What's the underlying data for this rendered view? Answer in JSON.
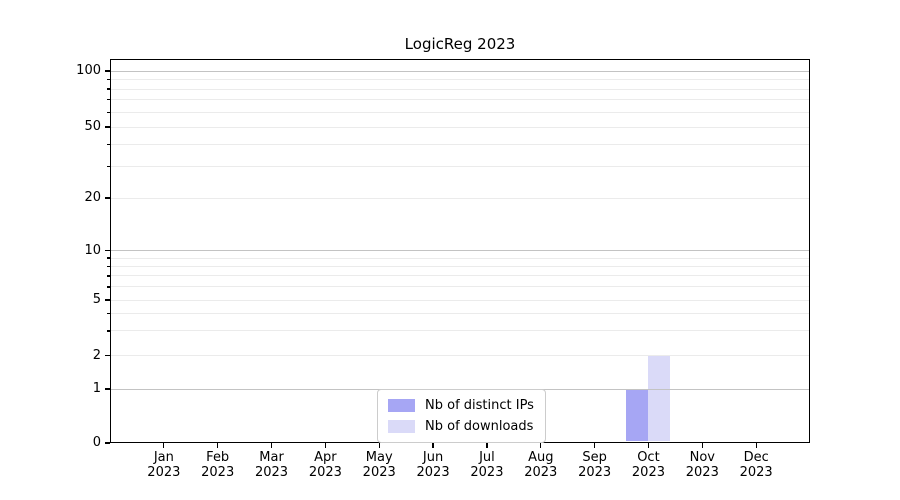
{
  "chart_data": {
    "type": "bar",
    "title": "LogicReg 2023",
    "x_categories": [
      {
        "month": "Jan",
        "year": "2023"
      },
      {
        "month": "Feb",
        "year": "2023"
      },
      {
        "month": "Mar",
        "year": "2023"
      },
      {
        "month": "Apr",
        "year": "2023"
      },
      {
        "month": "May",
        "year": "2023"
      },
      {
        "month": "Jun",
        "year": "2023"
      },
      {
        "month": "Jul",
        "year": "2023"
      },
      {
        "month": "Aug",
        "year": "2023"
      },
      {
        "month": "Sep",
        "year": "2023"
      },
      {
        "month": "Oct",
        "year": "2023"
      },
      {
        "month": "Nov",
        "year": "2023"
      },
      {
        "month": "Dec",
        "year": "2023"
      }
    ],
    "series": [
      {
        "name": "Nb of distinct IPs",
        "color": "#a6a6f4",
        "values": [
          0,
          0,
          0,
          0,
          0,
          0,
          0,
          0,
          0,
          1,
          0,
          0
        ]
      },
      {
        "name": "Nb of downloads",
        "color": "#dadaf8",
        "values": [
          0,
          0,
          0,
          0,
          0,
          0,
          0,
          0,
          0,
          2,
          0,
          0
        ]
      }
    ],
    "y_scale": "symlog",
    "y_ticks": [
      0,
      1,
      2,
      5,
      10,
      20,
      50,
      100
    ],
    "y_major_grid_values": [
      1,
      10,
      100
    ],
    "y_minor_ticks": [
      3,
      4,
      6,
      7,
      8,
      9,
      30,
      40,
      60,
      70,
      80,
      90
    ],
    "ylim": [
      0,
      120
    ],
    "grid": "horizontal",
    "legend_position": "lower center",
    "colors": {
      "major_grid": "#c3c3c3",
      "minor_grid": "#ebebeb",
      "spine": "#000000",
      "text": "#000000",
      "legend_border": "#cccccc"
    }
  }
}
